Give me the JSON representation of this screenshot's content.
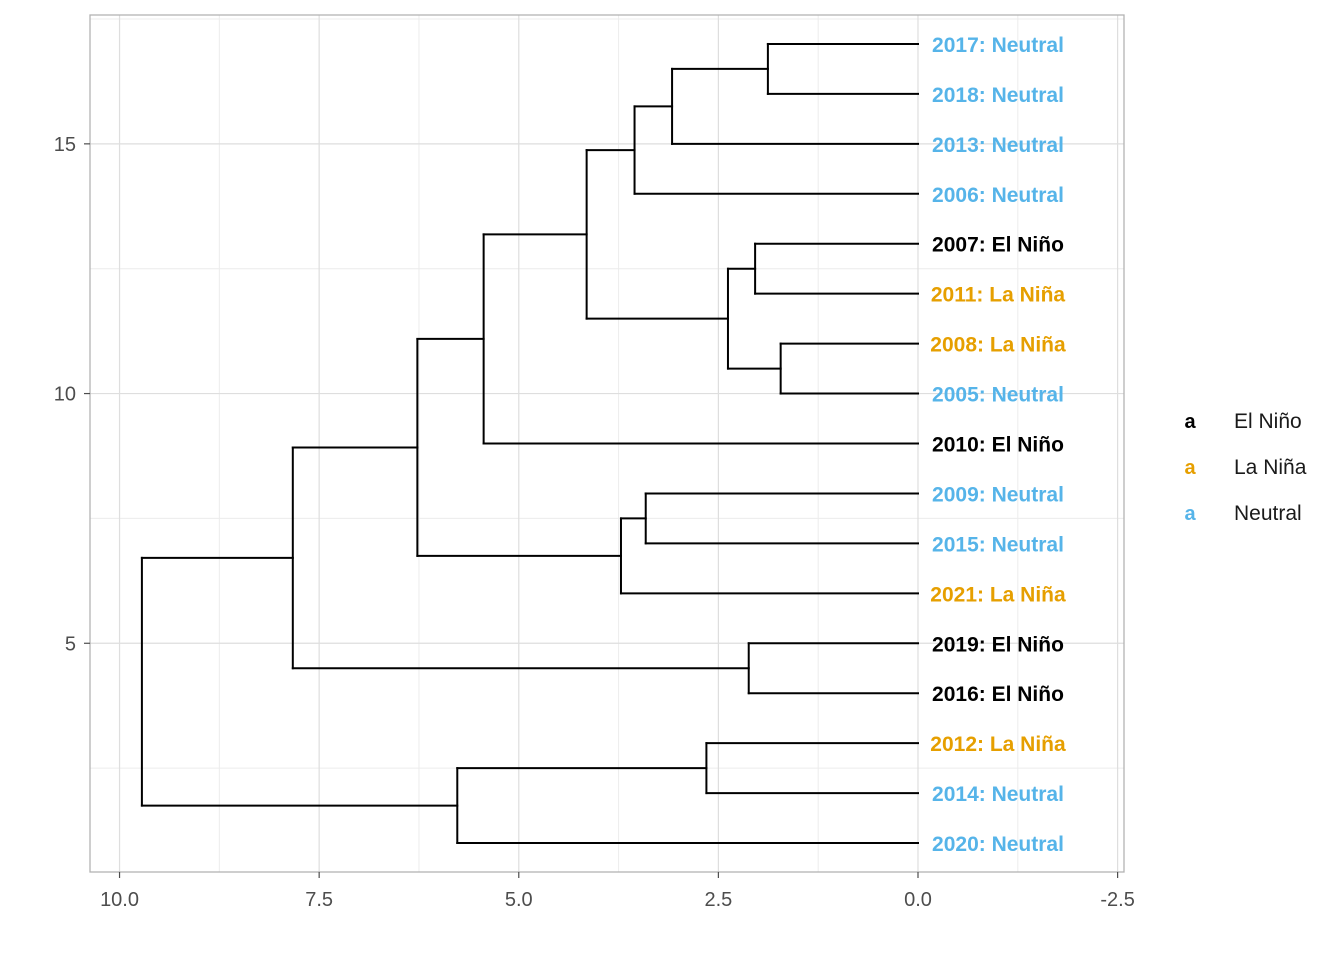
{
  "chart_data": {
    "type": "dendrogram",
    "title": "",
    "xlabel": "",
    "ylabel": "",
    "xlim": [
      10.37,
      -2.58
    ],
    "ylim": [
      0.42,
      17.58
    ],
    "x_reversed": true,
    "grid": true,
    "x_ticks": [
      10.0,
      7.5,
      5.0,
      2.5,
      0.0,
      -2.5
    ],
    "x_tick_labels": [
      "10.0",
      "7.5",
      "5.0",
      "2.5",
      "0.0",
      "-2.5"
    ],
    "y_ticks": [
      5,
      10,
      15
    ],
    "y_tick_labels": [
      "5",
      "10",
      "15"
    ],
    "legend": {
      "placement": "right",
      "key_glyph": "a",
      "entries": [
        {
          "label": "El Niño",
          "color": "#000000"
        },
        {
          "label": "La Niña",
          "color": "#E69F00"
        },
        {
          "label": "Neutral",
          "color": "#56B4E9"
        }
      ]
    },
    "leaves": [
      {
        "y": 17,
        "label": "2017: Neutral",
        "group": "Neutral"
      },
      {
        "y": 16,
        "label": "2018: Neutral",
        "group": "Neutral"
      },
      {
        "y": 15,
        "label": "2013: Neutral",
        "group": "Neutral"
      },
      {
        "y": 14,
        "label": "2006: Neutral",
        "group": "Neutral"
      },
      {
        "y": 13,
        "label": "2007: El Niño",
        "group": "El Niño"
      },
      {
        "y": 12,
        "label": "2011: La Niña",
        "group": "La Niña"
      },
      {
        "y": 11,
        "label": "2008: La Niña",
        "group": "La Niña"
      },
      {
        "y": 10,
        "label": "2005: Neutral",
        "group": "Neutral"
      },
      {
        "y": 9,
        "label": "2010: El Niño",
        "group": "El Niño"
      },
      {
        "y": 8,
        "label": "2009: Neutral",
        "group": "Neutral"
      },
      {
        "y": 7,
        "label": "2015: Neutral",
        "group": "Neutral"
      },
      {
        "y": 6,
        "label": "2021: La Niña",
        "group": "La Niña"
      },
      {
        "y": 5,
        "label": "2019: El Niño",
        "group": "El Niño"
      },
      {
        "y": 4,
        "label": "2016: El Niño",
        "group": "El Niño"
      },
      {
        "y": 3,
        "label": "2012: La Niña",
        "group": "La Niña"
      },
      {
        "y": 2,
        "label": "2014: Neutral",
        "group": "Neutral"
      },
      {
        "y": 1,
        "label": "2020: Neutral",
        "group": "Neutral"
      }
    ],
    "merges": [
      {
        "id": "m1",
        "height": 1.88,
        "y_low": 16,
        "y_high": 17,
        "children": [
          {
            "leaf": 17
          },
          {
            "leaf": 16
          }
        ]
      },
      {
        "id": "m2",
        "height": 3.08,
        "y_low": 15,
        "y_high": 16.5,
        "children": [
          {
            "node": "m1"
          },
          {
            "leaf": 15
          }
        ]
      },
      {
        "id": "m3",
        "height": 3.55,
        "y_low": 14,
        "y_high": 15.75,
        "children": [
          {
            "node": "m2"
          },
          {
            "leaf": 14
          }
        ]
      },
      {
        "id": "m4",
        "height": 2.04,
        "y_low": 12,
        "y_high": 13,
        "children": [
          {
            "leaf": 13
          },
          {
            "leaf": 12
          }
        ]
      },
      {
        "id": "m5",
        "height": 1.72,
        "y_low": 10,
        "y_high": 11,
        "children": [
          {
            "leaf": 11
          },
          {
            "leaf": 10
          }
        ]
      },
      {
        "id": "m6",
        "height": 2.38,
        "y_low": 10.5,
        "y_high": 12.5,
        "children": [
          {
            "node": "m4"
          },
          {
            "node": "m5"
          }
        ]
      },
      {
        "id": "m7",
        "height": 4.15,
        "y_low": 11.5,
        "y_high": 14.875,
        "children": [
          {
            "node": "m3"
          },
          {
            "node": "m6"
          }
        ]
      },
      {
        "id": "m8",
        "height": 5.44,
        "y_low": 9,
        "y_high": 13.1875,
        "children": [
          {
            "node": "m7"
          },
          {
            "leaf": 9
          }
        ]
      },
      {
        "id": "m9",
        "height": 3.41,
        "y_low": 7,
        "y_high": 8,
        "children": [
          {
            "leaf": 8
          },
          {
            "leaf": 7
          }
        ]
      },
      {
        "id": "m10",
        "height": 3.72,
        "y_low": 6,
        "y_high": 7.5,
        "children": [
          {
            "node": "m9"
          },
          {
            "leaf": 6
          }
        ]
      },
      {
        "id": "m11",
        "height": 6.27,
        "y_low": 6.75,
        "y_high": 11.09,
        "children": [
          {
            "node": "m8"
          },
          {
            "node": "m10"
          }
        ]
      },
      {
        "id": "m12",
        "height": 2.12,
        "y_low": 4,
        "y_high": 5,
        "children": [
          {
            "leaf": 5
          },
          {
            "leaf": 4
          }
        ]
      },
      {
        "id": "m13",
        "height": 7.83,
        "y_low": 4.5,
        "y_high": 8.92,
        "children": [
          {
            "node": "m11"
          },
          {
            "node": "m12"
          }
        ]
      },
      {
        "id": "m14",
        "height": 2.65,
        "y_low": 2,
        "y_high": 3,
        "children": [
          {
            "leaf": 3
          },
          {
            "leaf": 2
          }
        ]
      },
      {
        "id": "m15",
        "height": 5.77,
        "y_low": 1,
        "y_high": 2.5,
        "children": [
          {
            "node": "m14"
          },
          {
            "leaf": 1
          }
        ]
      },
      {
        "id": "m16",
        "height": 9.72,
        "y_low": 1.75,
        "y_high": 6.71,
        "children": [
          {
            "node": "m13"
          },
          {
            "node": "m15"
          }
        ]
      }
    ]
  }
}
